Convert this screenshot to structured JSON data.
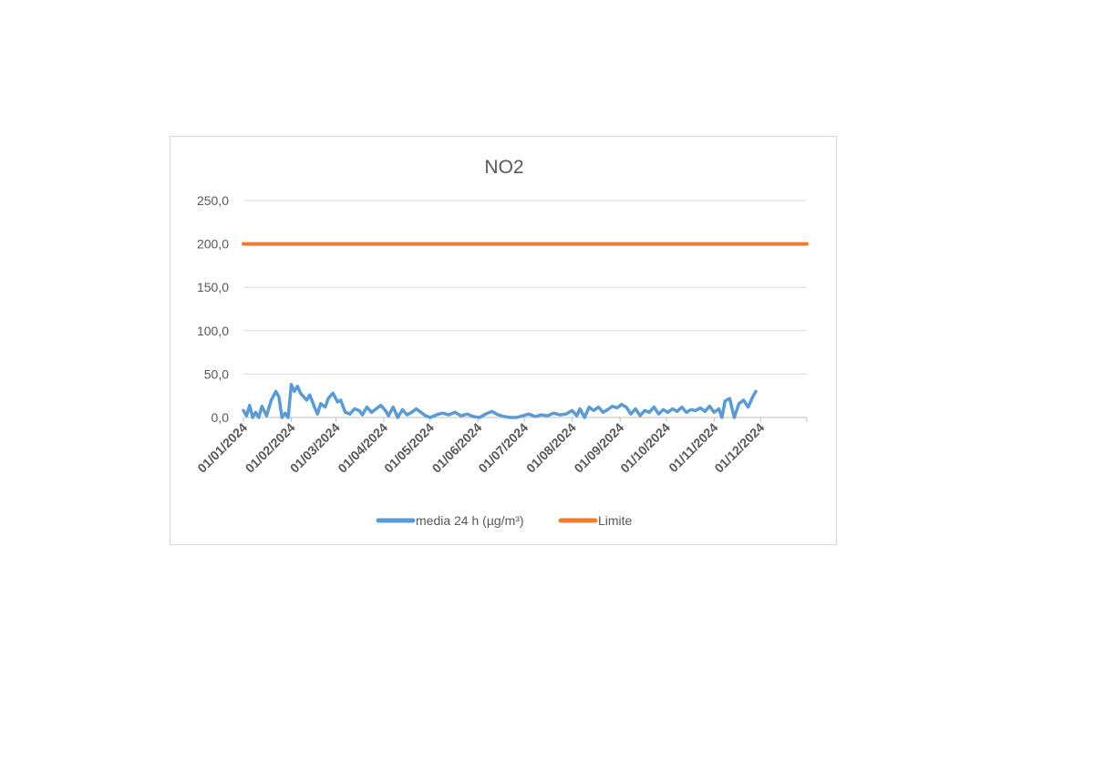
{
  "chart_data": {
    "type": "line",
    "title": "NO2",
    "xlabel": "",
    "ylabel": "",
    "ylim": [
      0,
      250
    ],
    "y_ticks": [
      "0,0",
      "50,0",
      "100,0",
      "150,0",
      "200,0",
      "250,0"
    ],
    "y_tick_values": [
      0,
      50,
      100,
      150,
      200,
      250
    ],
    "x_ticks": [
      "01/01/2024",
      "01/02/2024",
      "01/03/2024",
      "01/04/2024",
      "01/05/2024",
      "01/06/2024",
      "01/07/2024",
      "01/08/2024",
      "01/09/2024",
      "01/10/2024",
      "01/11/2024",
      "01/12/2024"
    ],
    "xlim": [
      "2024-01-01",
      "2024-12-31"
    ],
    "grid": true,
    "legend_position": "bottom",
    "colors": {
      "media": "#5b9bd5",
      "limite": "#ed7d31",
      "grid": "#d9d9d9",
      "axis": "#bfbfbf",
      "text": "#595959"
    },
    "series": [
      {
        "name": "media 24 h (µg/m³)",
        "color": "#5b9bd5",
        "x": [
          "2024-01-01",
          "2024-01-03",
          "2024-01-05",
          "2024-01-07",
          "2024-01-09",
          "2024-01-11",
          "2024-01-13",
          "2024-01-16",
          "2024-01-19",
          "2024-01-22",
          "2024-01-24",
          "2024-01-26",
          "2024-01-28",
          "2024-01-30",
          "2024-02-01",
          "2024-02-03",
          "2024-02-05",
          "2024-02-07",
          "2024-02-09",
          "2024-02-11",
          "2024-02-13",
          "2024-02-16",
          "2024-02-18",
          "2024-02-20",
          "2024-02-23",
          "2024-02-25",
          "2024-02-28",
          "2024-03-02",
          "2024-03-04",
          "2024-03-07",
          "2024-03-10",
          "2024-03-13",
          "2024-03-16",
          "2024-03-18",
          "2024-03-21",
          "2024-03-24",
          "2024-03-27",
          "2024-03-30",
          "2024-04-02",
          "2024-04-04",
          "2024-04-07",
          "2024-04-10",
          "2024-04-13",
          "2024-04-16",
          "2024-04-19",
          "2024-04-22",
          "2024-04-25",
          "2024-04-28",
          "2024-05-01",
          "2024-05-05",
          "2024-05-09",
          "2024-05-13",
          "2024-05-17",
          "2024-05-21",
          "2024-05-25",
          "2024-05-29",
          "2024-06-02",
          "2024-06-06",
          "2024-06-10",
          "2024-06-14",
          "2024-06-18",
          "2024-06-22",
          "2024-06-26",
          "2024-06-30",
          "2024-07-04",
          "2024-07-08",
          "2024-07-12",
          "2024-07-16",
          "2024-07-20",
          "2024-07-24",
          "2024-07-28",
          "2024-08-01",
          "2024-08-04",
          "2024-08-06",
          "2024-08-09",
          "2024-08-12",
          "2024-08-15",
          "2024-08-18",
          "2024-08-21",
          "2024-08-24",
          "2024-08-27",
          "2024-08-30",
          "2024-09-02",
          "2024-09-05",
          "2024-09-08",
          "2024-09-11",
          "2024-09-14",
          "2024-09-17",
          "2024-09-20",
          "2024-09-23",
          "2024-09-26",
          "2024-09-29",
          "2024-10-02",
          "2024-10-05",
          "2024-10-08",
          "2024-10-11",
          "2024-10-14",
          "2024-10-17",
          "2024-10-20",
          "2024-10-23",
          "2024-10-26",
          "2024-10-29",
          "2024-11-01",
          "2024-11-04",
          "2024-11-06",
          "2024-11-08",
          "2024-11-11",
          "2024-11-14",
          "2024-11-17",
          "2024-11-20",
          "2024-11-23",
          "2024-11-26",
          "2024-11-28"
        ],
        "values": [
          8,
          2,
          14,
          0,
          6,
          0,
          13,
          2,
          20,
          30,
          24,
          0,
          5,
          0,
          38,
          30,
          36,
          28,
          24,
          20,
          26,
          12,
          4,
          16,
          12,
          22,
          28,
          18,
          20,
          6,
          4,
          10,
          8,
          3,
          12,
          6,
          10,
          14,
          8,
          2,
          12,
          0,
          9,
          3,
          6,
          10,
          6,
          2,
          0,
          3,
          5,
          3,
          6,
          2,
          4,
          1,
          0,
          4,
          7,
          3,
          1,
          0,
          0,
          2,
          4,
          1,
          3,
          2,
          5,
          3,
          4,
          8,
          2,
          10,
          0,
          12,
          8,
          12,
          6,
          9,
          13,
          11,
          15,
          12,
          4,
          10,
          2,
          8,
          6,
          12,
          4,
          9,
          6,
          10,
          7,
          12,
          6,
          9,
          8,
          11,
          7,
          13,
          6,
          10,
          0,
          19,
          22,
          0,
          16,
          20,
          12,
          24,
          30
        ]
      },
      {
        "name": "Limite",
        "color": "#ed7d31",
        "x": [
          "2024-01-01",
          "2024-12-31"
        ],
        "values": [
          200,
          200
        ]
      }
    ]
  }
}
